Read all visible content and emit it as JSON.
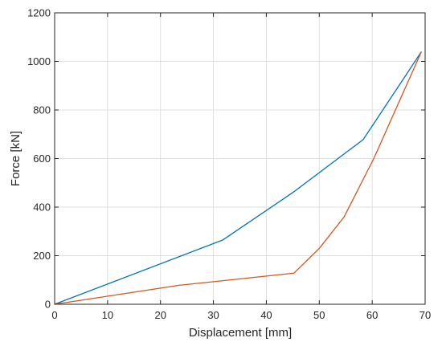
{
  "chart_data": {
    "type": "line",
    "title": "",
    "xlabel": "Displacement [mm]",
    "ylabel": "Force [kN]",
    "xlim": [
      0,
      70
    ],
    "ylim": [
      0,
      1200
    ],
    "x_ticks": [
      "0",
      "10",
      "20",
      "30",
      "40",
      "50",
      "60",
      "70"
    ],
    "y_ticks": [
      "0",
      "200",
      "400",
      "600",
      "800",
      "1000",
      "1200"
    ],
    "grid": true,
    "series": [
      {
        "color": "#0072BD",
        "x": [
          0,
          31.8,
          45.0,
          58.3,
          69.3
        ],
        "y": [
          0,
          265,
          460,
          678,
          1040
        ]
      },
      {
        "color": "#D95319",
        "x": [
          0,
          23.5,
          45.2,
          50.0,
          54.7,
          60.3,
          69.3
        ],
        "y": [
          0,
          78,
          128,
          230,
          360,
          600,
          1040
        ]
      }
    ]
  }
}
